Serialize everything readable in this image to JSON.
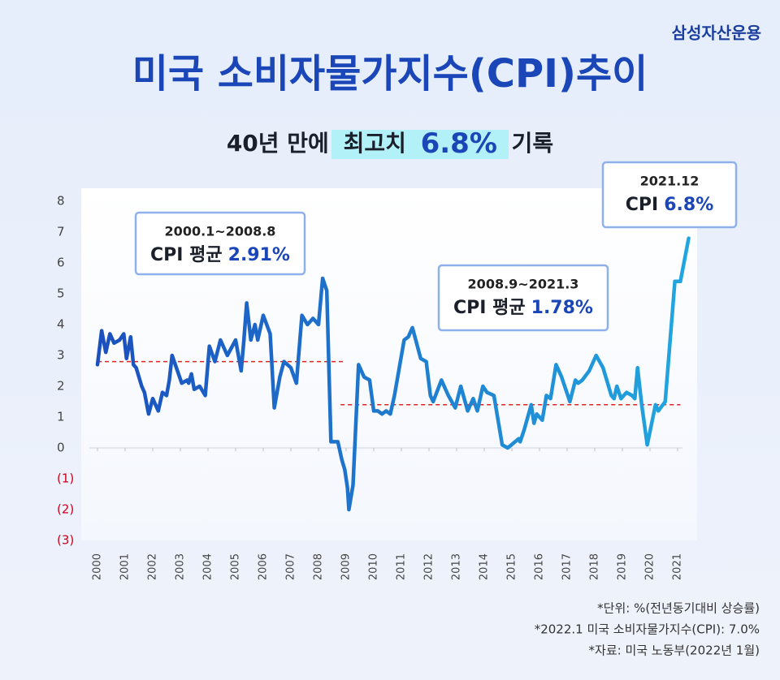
{
  "brand": "삼성자산운용",
  "chart_data": {
    "type": "line",
    "title": "미국 소비자물가지수(CPI)추이",
    "subtitle": {
      "lead": "40년 만에",
      "highlight": "최고치",
      "highlight_value": "6.8%",
      "tail": "기록"
    },
    "xlim": [
      2000,
      2022
    ],
    "xticks": [
      2000,
      2001,
      2002,
      2003,
      2004,
      2005,
      2006,
      2007,
      2008,
      2009,
      2010,
      2011,
      2012,
      2013,
      2014,
      2015,
      2016,
      2017,
      2018,
      2019,
      2020,
      2021
    ],
    "ylim": [
      -3,
      8
    ],
    "yticks": [
      {
        "value": -3,
        "label": "(3)"
      },
      {
        "value": -2,
        "label": "(2)"
      },
      {
        "value": -1,
        "label": "(1)"
      },
      0,
      1,
      2,
      3,
      4,
      5,
      6,
      7,
      8
    ],
    "negative_tick_color": "#d0021b",
    "series": [
      {
        "name": "CPI",
        "color": "#1b4fbe",
        "color_end": "#22a6df",
        "x": [
          2000.0,
          2000.15,
          2000.3,
          2000.45,
          2000.6,
          2000.8,
          2000.95,
          2001.05,
          2001.2,
          2001.3,
          2001.4,
          2001.6,
          2001.7,
          2001.85,
          2002.0,
          2002.2,
          2002.35,
          2002.5,
          2002.6,
          2002.7,
          2003.05,
          2003.25,
          2003.3,
          2003.4,
          2003.5,
          2003.7,
          2003.9,
          2004.05,
          2004.25,
          2004.45,
          2004.7,
          2005.0,
          2005.2,
          2005.3,
          2005.4,
          2005.55,
          2005.7,
          2005.8,
          2006.0,
          2006.25,
          2006.4,
          2006.6,
          2006.75,
          2007.0,
          2007.2,
          2007.4,
          2007.6,
          2007.8,
          2008.0,
          2008.15,
          2008.3,
          2008.45,
          2008.7,
          2008.85,
          2008.95,
          2009.05,
          2009.1,
          2009.25,
          2009.45,
          2009.65,
          2009.85,
          2010.0,
          2010.15,
          2010.3,
          2010.45,
          2010.6,
          2010.75,
          2011.1,
          2011.25,
          2011.4,
          2011.55,
          2011.7,
          2011.9,
          2012.05,
          2012.15,
          2012.45,
          2012.7,
          2012.95,
          2013.15,
          2013.4,
          2013.6,
          2013.75,
          2013.95,
          2014.1,
          2014.35,
          2014.65,
          2014.85,
          2015.25,
          2015.3,
          2015.45,
          2015.7,
          2015.8,
          2015.9,
          2016.1,
          2016.25,
          2016.4,
          2016.6,
          2016.8,
          2017.1,
          2017.3,
          2017.4,
          2017.55,
          2017.8,
          2018.05,
          2018.3,
          2018.6,
          2018.7,
          2018.8,
          2018.95,
          2019.15,
          2019.35,
          2019.45,
          2019.55,
          2019.7,
          2019.9,
          2020.2,
          2020.3,
          2020.55,
          2020.9,
          2021.1,
          2021.4
        ],
        "values": [
          2.7,
          3.8,
          3.1,
          3.7,
          3.4,
          3.5,
          3.7,
          2.9,
          3.6,
          2.7,
          2.6,
          2.0,
          1.8,
          1.1,
          1.6,
          1.2,
          1.8,
          1.7,
          2.2,
          3.0,
          2.1,
          2.2,
          2.1,
          2.4,
          1.9,
          2.0,
          1.7,
          3.3,
          2.8,
          3.5,
          3.0,
          3.5,
          2.5,
          3.5,
          4.7,
          3.5,
          4.0,
          3.5,
          4.3,
          3.7,
          1.3,
          2.3,
          2.8,
          2.6,
          2.1,
          4.3,
          4.0,
          4.2,
          4.0,
          5.5,
          5.1,
          0.2,
          0.2,
          -0.4,
          -0.7,
          -1.3,
          -2.0,
          -1.2,
          2.7,
          2.3,
          2.2,
          1.2,
          1.2,
          1.1,
          1.2,
          1.1,
          1.7,
          3.5,
          3.6,
          3.9,
          3.4,
          2.9,
          2.8,
          1.7,
          1.5,
          2.2,
          1.7,
          1.3,
          2.0,
          1.2,
          1.6,
          1.2,
          2.0,
          1.8,
          1.7,
          0.1,
          0.0,
          0.3,
          0.2,
          0.6,
          1.4,
          0.8,
          1.1,
          0.9,
          1.7,
          1.6,
          2.7,
          2.3,
          1.5,
          2.2,
          2.1,
          2.2,
          2.5,
          3.0,
          2.6,
          1.7,
          1.6,
          2.0,
          1.6,
          1.8,
          1.7,
          1.6,
          2.6,
          1.4,
          0.1,
          1.4,
          1.2,
          1.5,
          5.4,
          5.4,
          6.8
        ]
      }
    ],
    "reference_lines": [
      {
        "x": [
          2000,
          2008.95
        ],
        "value": 2.8,
        "color": "#e02424"
      },
      {
        "x": [
          2008.8,
          2021.1
        ],
        "value": 1.4,
        "color": "#e02424"
      }
    ],
    "annotations": [
      {
        "period": "2000.1~2008.8",
        "label": "CPI 평균",
        "value": "2.91%"
      },
      {
        "period": "2008.9~2021.3",
        "label": "CPI 평균",
        "value": "1.78%"
      },
      {
        "period": "2021.12",
        "label": "CPI",
        "value": "6.8%"
      }
    ]
  },
  "footnotes": [
    "*단위: %(전년동기대비 상승률)",
    "*2022.1 미국 소비자물가지수(CPI): 7.0%",
    "*자료: 미국 노동부(2022년 1월)"
  ]
}
